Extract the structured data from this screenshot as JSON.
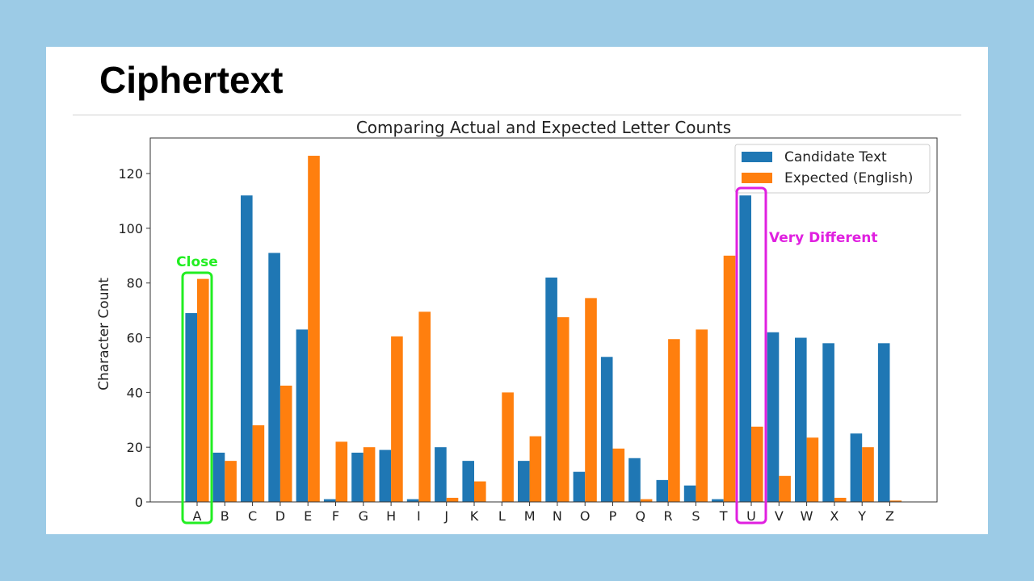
{
  "slide": {
    "title": "Ciphertext"
  },
  "chart_data": {
    "type": "bar",
    "title": "Comparing Actual and Expected Letter Counts",
    "xlabel": "",
    "ylabel": "Character Count",
    "ylim": [
      0,
      133
    ],
    "yticks": [
      0,
      20,
      40,
      60,
      80,
      100,
      120
    ],
    "grid": false,
    "legend_position": "top-right",
    "categories": [
      "A",
      "B",
      "C",
      "D",
      "E",
      "F",
      "G",
      "H",
      "I",
      "J",
      "K",
      "L",
      "M",
      "N",
      "O",
      "P",
      "Q",
      "R",
      "S",
      "T",
      "U",
      "V",
      "W",
      "X",
      "Y",
      "Z"
    ],
    "series": [
      {
        "name": "Candidate Text",
        "color": "#1f77b4",
        "values": [
          69,
          18,
          112,
          91,
          63,
          1,
          18,
          19,
          1,
          20,
          15,
          0,
          15,
          82,
          11,
          53,
          16,
          8,
          6,
          1,
          112,
          62,
          60,
          58,
          25,
          58
        ]
      },
      {
        "name": "Expected (English)",
        "color": "#ff7f0e",
        "values": [
          81.5,
          15,
          28,
          42.5,
          126.5,
          22,
          20,
          60.5,
          69.5,
          1.5,
          7.5,
          40,
          24,
          67.5,
          74.5,
          19.5,
          1,
          59.5,
          63,
          90,
          27.5,
          9.5,
          23.5,
          1.5,
          20,
          0.5
        ]
      }
    ],
    "annotations": [
      {
        "text": "Close",
        "color": "#22ee22",
        "category": "A"
      },
      {
        "text": "Very Different",
        "color": "#e020e0",
        "category": "U"
      }
    ]
  }
}
